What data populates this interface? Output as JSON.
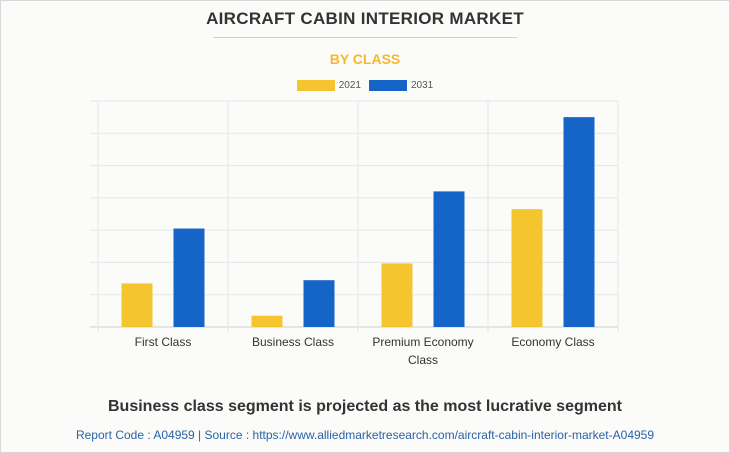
{
  "title": "AIRCRAFT CABIN INTERIOR MARKET",
  "subtitle": "BY CLASS",
  "headline": "Business class segment is projected as the most lucrative segment",
  "source": "Report Code : A04959  |  Source : https://www.alliedmarketresearch.com/aircraft-cabin-interior-market-A04959",
  "colors": {
    "series_2021": "#f5c530",
    "series_2031": "#1565c8",
    "subtitle": "#f5b82e"
  },
  "chart_data": {
    "type": "bar",
    "title": "AIRCRAFT CABIN INTERIOR MARKET",
    "subtitle": "BY CLASS",
    "categories": [
      [
        "First Class"
      ],
      [
        "Business Class"
      ],
      [
        "Premium Economy",
        "Class"
      ],
      [
        "Economy Class"
      ]
    ],
    "series": [
      {
        "name": "2021",
        "values": [
          1.35,
          0.35,
          1.97,
          3.65
        ]
      },
      {
        "name": "2031",
        "values": [
          3.05,
          1.45,
          4.2,
          6.5
        ]
      }
    ],
    "ylim": [
      0,
      7
    ],
    "grid": true,
    "legend": "top-center"
  }
}
